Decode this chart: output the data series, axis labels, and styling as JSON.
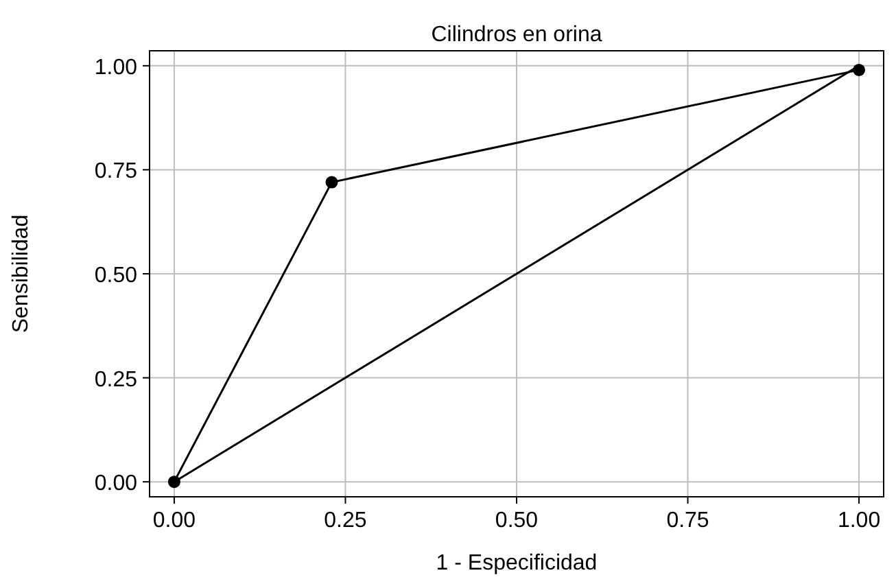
{
  "chart_data": {
    "type": "line",
    "title": "Cilindros en orina",
    "xlabel": "1 - Especificidad",
    "ylabel": "Sensibilidad",
    "xlim": [
      -0.036,
      1.036
    ],
    "ylim": [
      -0.036,
      1.036
    ],
    "xticks": [
      {
        "value": 0,
        "label": "0.00"
      },
      {
        "value": 0.25,
        "label": "0.25"
      },
      {
        "value": 0.5,
        "label": "0.50"
      },
      {
        "value": 0.75,
        "label": "0.75"
      },
      {
        "value": 1,
        "label": "1.00"
      }
    ],
    "yticks": [
      {
        "value": 0,
        "label": "0.00"
      },
      {
        "value": 0.25,
        "label": "0.25"
      },
      {
        "value": 0.5,
        "label": "0.50"
      },
      {
        "value": 0.75,
        "label": "0.75"
      },
      {
        "value": 1,
        "label": "1.00"
      }
    ],
    "grid": true,
    "series": [
      {
        "color": "#000000",
        "x": [
          0,
          0.23,
          1
        ],
        "values": [
          0,
          0.72,
          0.99
        ],
        "marker": "circle"
      },
      {
        "color": "#000000",
        "x": [
          0,
          1
        ],
        "values": [
          0,
          1
        ],
        "marker": "none"
      }
    ]
  }
}
